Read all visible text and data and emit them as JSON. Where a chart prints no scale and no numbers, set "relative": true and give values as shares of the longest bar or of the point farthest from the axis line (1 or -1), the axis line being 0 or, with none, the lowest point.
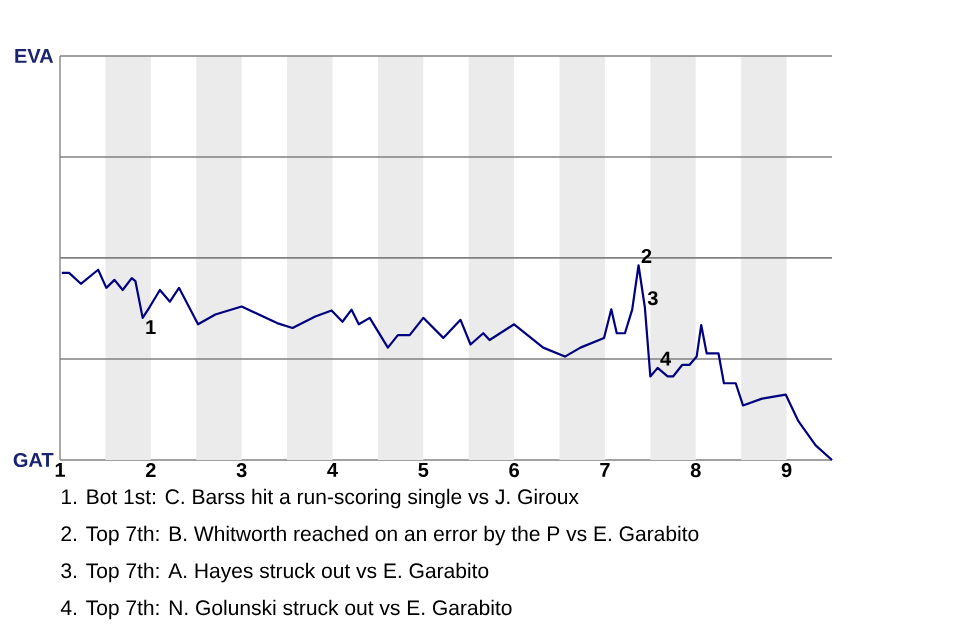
{
  "chart_data": {
    "type": "line",
    "relative": true,
    "xlim": [
      1,
      9.5
    ],
    "xticks": [
      1,
      2,
      3,
      4,
      5,
      6,
      7,
      8,
      9
    ],
    "ref_lines": [
      {
        "axis": "y",
        "value": 0.519,
        "color": "#808080"
      },
      {
        "axis": "y",
        "value": 1.038,
        "color": "#808080"
      },
      {
        "axis": "y",
        "value": 1.556,
        "color": "#808080"
      },
      {
        "axis": "y",
        "value": 2.075,
        "color": "#808080"
      }
    ],
    "marker": "none",
    "line_style": "solid",
    "bands": [
      {
        "axis": "x",
        "from": 1.5,
        "to": 2,
        "color": "#ebebeb"
      },
      {
        "axis": "x",
        "from": 2.5,
        "to": 3,
        "color": "#ebebeb"
      },
      {
        "axis": "x",
        "from": 3.5,
        "to": 4,
        "color": "#ebebeb"
      },
      {
        "axis": "x",
        "from": 4.5,
        "to": 5,
        "color": "#ebebeb"
      },
      {
        "axis": "x",
        "from": 5.5,
        "to": 6,
        "color": "#ebebeb"
      },
      {
        "axis": "x",
        "from": 6.5,
        "to": 7,
        "color": "#ebebeb"
      },
      {
        "axis": "x",
        "from": 7.5,
        "to": 8,
        "color": "#ebebeb"
      },
      {
        "axis": "x",
        "from": 8.5,
        "to": 9,
        "color": "#ebebeb"
      }
    ],
    "series": [
      {
        "color": "#000080",
        "x": [
          1.02,
          1.1,
          1.23,
          1.42,
          1.51,
          1.6,
          1.69,
          1.79,
          1.83,
          1.91,
          1.99,
          2.1,
          2.21,
          2.31,
          2.52,
          2.71,
          3.0,
          3.39,
          3.56,
          3.81,
          3.99,
          4.11,
          4.21,
          4.29,
          4.41,
          4.61,
          4.72,
          4.85,
          5.0,
          5.22,
          5.41,
          5.52,
          5.66,
          5.73,
          6.0,
          6.32,
          6.56,
          6.73,
          6.99,
          7.07,
          7.13,
          7.22,
          7.3,
          7.37,
          7.44,
          7.5,
          7.58,
          7.69,
          7.75,
          7.85,
          7.93,
          8.01,
          8.06,
          8.12,
          8.25,
          8.31,
          8.44,
          8.52,
          8.73,
          8.99,
          9.13,
          9.32,
          9.5
        ],
        "values": [
          0.961,
          0.961,
          0.905,
          0.977,
          0.884,
          0.925,
          0.873,
          0.934,
          0.919,
          0.73,
          0.788,
          0.873,
          0.813,
          0.884,
          0.697,
          0.747,
          0.788,
          0.703,
          0.678,
          0.737,
          0.768,
          0.71,
          0.772,
          0.697,
          0.73,
          0.577,
          0.641,
          0.641,
          0.73,
          0.627,
          0.72,
          0.593,
          0.651,
          0.616,
          0.697,
          0.577,
          0.531,
          0.577,
          0.627,
          0.774,
          0.651,
          0.651,
          0.772,
          1,
          0.782,
          0.429,
          0.473,
          0.429,
          0.429,
          0.488,
          0.488,
          0.531,
          0.693,
          0.548,
          0.548,
          0.394,
          0.394,
          0.28,
          0.315,
          0.336,
          0.199,
          0.075,
          0
        ]
      }
    ],
    "annotations": [
      "EVA",
      "GAT",
      {
        "text": "1",
        "x": 1.91,
        "y": 0.73
      },
      {
        "text": "2",
        "x": 7.37,
        "y": 1
      },
      {
        "text": "3",
        "x": 7.44,
        "y": 0.782
      },
      {
        "text": "4",
        "x": 7.58,
        "y": 0.473
      },
      "1. Bot 1st: C. Barss hit a run-scoring single vs J. Giroux",
      "2. Top 7th: B. Whitworth reached on an error by the P vs E. Garabito",
      "3. Top 7th: A. Hayes struck out vs E. Garabito",
      "4. Top 7th: N. Golunski struck out vs E. Garabito"
    ]
  }
}
